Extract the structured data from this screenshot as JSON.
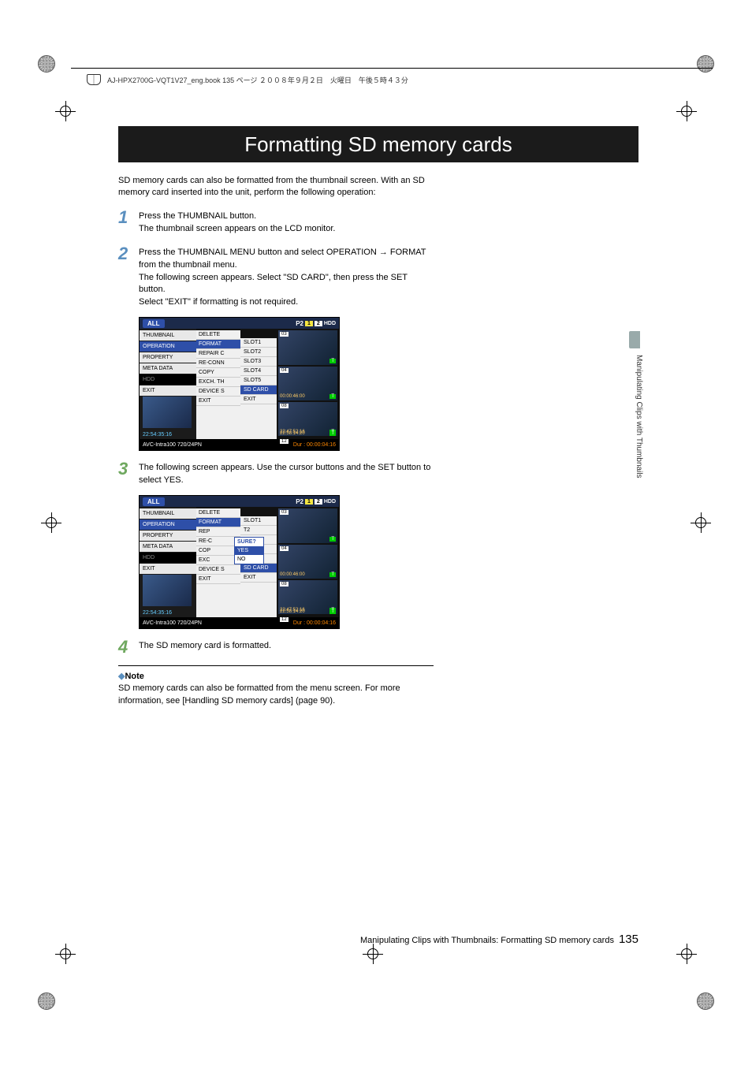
{
  "header": {
    "file_info": "AJ-HPX2700G-VQT1V27_eng.book  135 ページ  ２００８年９月２日　火曜日　午後５時４３分"
  },
  "title": "Formatting SD memory cards",
  "intro": "SD memory cards can also be formatted from the thumbnail screen. With an SD memory card inserted into the unit, perform the following operation:",
  "steps": {
    "s1": {
      "num": "1",
      "line1": "Press the THUMBNAIL button.",
      "line2": "The thumbnail screen appears on the LCD monitor."
    },
    "s2": {
      "num": "2",
      "line1": "Press the THUMBNAIL MENU button and select OPERATION → FORMAT from the thumbnail menu.",
      "line2": "The following screen appears. Select \"SD CARD\", then press the SET button.",
      "line3": "Select \"EXIT\" if formatting is not required."
    },
    "s3": {
      "num": "3",
      "line1": "The following screen appears. Use the cursor buttons and the SET button to select YES."
    },
    "s4": {
      "num": "4",
      "line1": "The SD memory card is formatted."
    }
  },
  "note": {
    "heading": "Note",
    "body": "SD memory cards can also be formatted from the menu screen. For more information, see [Handling SD memory cards] (page 90)."
  },
  "side_text": "Manipulating Clips with Thumbnails",
  "footer": {
    "text": "Manipulating Clips with Thumbnails: Formatting SD memory cards",
    "page": "135"
  },
  "screenshot1": {
    "top_all": "ALL",
    "p2": "P2",
    "slot1": "1",
    "slot2": "2",
    "hdd": "HDD",
    "menu1": [
      "THUMBNAIL",
      "OPERATION",
      "PROPERTY",
      "META DATA",
      "HDD",
      "EXIT"
    ],
    "menu1_sel": "OPERATION",
    "menu2": [
      "DELETE",
      "FORMAT",
      "REPAIR C",
      "RE-CONN",
      "COPY",
      "EXCH. TH",
      "DEVICE S",
      "EXIT"
    ],
    "menu2_sel": "FORMAT",
    "menu3": [
      "SLOT1",
      "SLOT2",
      "SLOT3",
      "SLOT4",
      "SLOT5",
      "SD CARD",
      "EXIT"
    ],
    "menu3_sel": "SD CARD",
    "left_tc": "22:54:35:16",
    "clips": [
      {
        "n": "03",
        "tc": ""
      },
      {
        "n": "04",
        "tc": "00:00:46:00"
      },
      {
        "n": "08",
        "tc": "22:47:52:16"
      },
      {
        "n": "12",
        "tc": "22:58:14:20"
      }
    ],
    "bottom_left": "AVC-Intra100  720/24PN",
    "bottom_right": "Dur : 00:00:04:16"
  },
  "screenshot2": {
    "top_all": "ALL",
    "p2": "P2",
    "slot1": "1",
    "slot2": "2",
    "hdd": "HDD",
    "menu1": [
      "THUMBNAIL",
      "OPERATION",
      "PROPERTY",
      "META DATA",
      "HDD",
      "EXIT"
    ],
    "menu1_sel": "OPERATION",
    "menu2": [
      "DELETE",
      "FORMAT",
      "REP",
      "RE-C",
      "COP",
      "EXC",
      "DEVICE S",
      "EXIT"
    ],
    "menu2_sel": "FORMAT",
    "menu3": [
      "SLOT1",
      "T2",
      "T3",
      "T4",
      "T5",
      "SD CARD",
      "EXIT"
    ],
    "menu3_sel": "SD CARD",
    "sure": {
      "hd": "SURE?",
      "yes": "YES",
      "no": "NO"
    },
    "left_tc": "22:54:35:16",
    "clips": [
      {
        "n": "03",
        "tc": ""
      },
      {
        "n": "04",
        "tc": "00:00:46:00"
      },
      {
        "n": "08",
        "tc": "22:47:52:16"
      },
      {
        "n": "12",
        "tc": "22:58:14:20"
      }
    ],
    "bottom_left": "AVC-Intra100  720/24PN",
    "bottom_right": "Dur : 00:00:04:16"
  },
  "colors": {
    "title_bg": "#1b1b1b",
    "step_blue": "#5a8fbf",
    "step_green": "#6fa85f",
    "menu_sel": "#2e4fa8"
  }
}
